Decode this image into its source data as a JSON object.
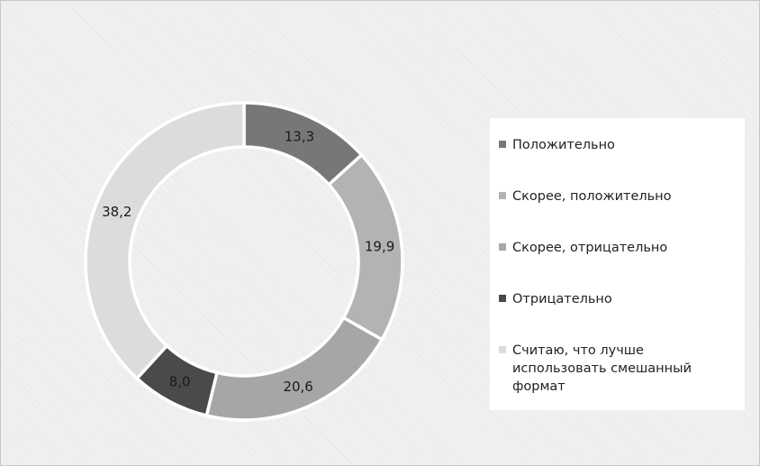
{
  "chart_data": {
    "type": "donut",
    "title": "",
    "series": [
      {
        "label": "Положительно",
        "value": 13.3,
        "value_label": "13,3",
        "color": "#777777"
      },
      {
        "label": "Скорее, положительно",
        "value": 19.9,
        "value_label": "19,9",
        "color": "#b3b3b3"
      },
      {
        "label": "Скорее, отрицательно",
        "value": 20.6,
        "value_label": "20,6",
        "color": "#a6a6a6"
      },
      {
        "label": "Отрицательно",
        "value": 8.0,
        "value_label": "8,0",
        "color": "#4a4a4a"
      },
      {
        "label": "Считаю, что лучше использовать смешанный формат",
        "value": 38.2,
        "value_label": "38,2",
        "color": "#dcdcdc"
      }
    ],
    "legend_position": "right"
  }
}
